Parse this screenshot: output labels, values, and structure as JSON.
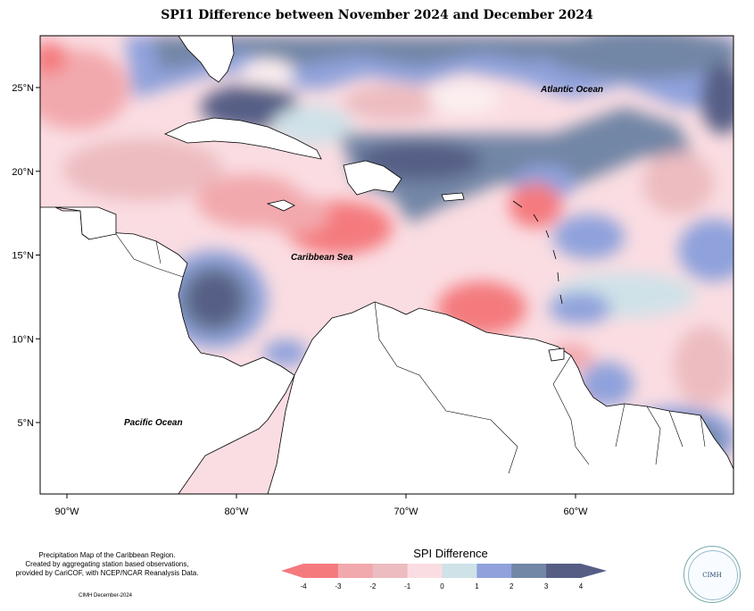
{
  "title": "SPI1 Difference between November 2024 and December 2024",
  "axes": {
    "x_ticks": [
      {
        "lon": -90,
        "label": "90°W"
      },
      {
        "lon": -80,
        "label": "80°W"
      },
      {
        "lon": -70,
        "label": "70°W"
      },
      {
        "lon": -60,
        "label": "60°W"
      }
    ],
    "y_ticks": [
      {
        "lat": 25,
        "label": "25°N"
      },
      {
        "lat": 20,
        "label": "20°N"
      },
      {
        "lat": 15,
        "label": "15°N"
      },
      {
        "lat": 10,
        "label": "10°N"
      },
      {
        "lat": 5,
        "label": "5°N"
      }
    ]
  },
  "map_labels": {
    "atlantic": "Atlantic Ocean",
    "caribbean": "Caribbean Sea",
    "pacific": "Pacific Ocean"
  },
  "legend": {
    "title": "SPI Difference",
    "ticks": [
      "-4",
      "-3",
      "-2",
      "-1",
      "0",
      "1",
      "2",
      "3",
      "4"
    ],
    "colors": [
      "#f47a7e",
      "#f2a9ad",
      "#ecbcc0",
      "#fadde2",
      "#fbeff0",
      "#cfe2e8",
      "#8fa2dc",
      "#7286a6",
      "#565e86"
    ]
  },
  "footer": {
    "line1": "Precipitation Map of the Caribbean Region.",
    "line2": "Created by aggregating station based observations,",
    "line3": "provided by CariCOF, with NCEP/NCAR Reanalysis Data.",
    "credit": "CIMH December-2024"
  },
  "logo": {
    "text": "CIMH"
  }
}
